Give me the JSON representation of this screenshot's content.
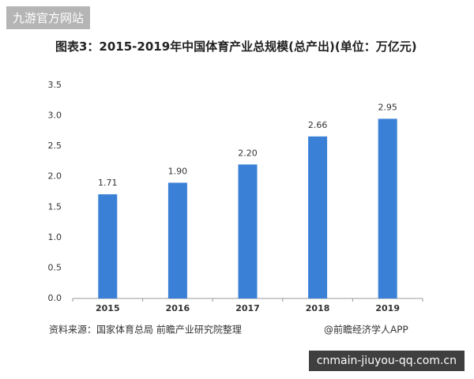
{
  "site_badge": "九游官方网站",
  "chart_data": {
    "type": "bar",
    "title": "图表3：2015-2019年中国体育产业总规模(总产出)(单位：万亿元)",
    "categories": [
      "2015",
      "2016",
      "2017",
      "2018",
      "2019"
    ],
    "values": [
      1.71,
      1.9,
      2.2,
      2.66,
      2.95
    ],
    "value_labels": [
      "1.71",
      "1.90",
      "2.20",
      "2.66",
      "2.95"
    ],
    "color": "#3a80d6",
    "ylim": [
      0,
      3.5
    ],
    "yticks": [
      {
        "value": 0,
        "label": "0.0"
      },
      0.5,
      {
        "value": 1,
        "label": "1.0"
      },
      1.5,
      {
        "value": 2,
        "label": "2.0"
      },
      2.5,
      {
        "value": 3,
        "label": "3.0"
      },
      3.5
    ],
    "grid": false,
    "source": "资料来源：国家体育总局 前瞻产业研究院整理",
    "credit": "@前瞻经济学人APP"
  },
  "footer_badge": "cnmain-jiuyou-qq.com.cn"
}
